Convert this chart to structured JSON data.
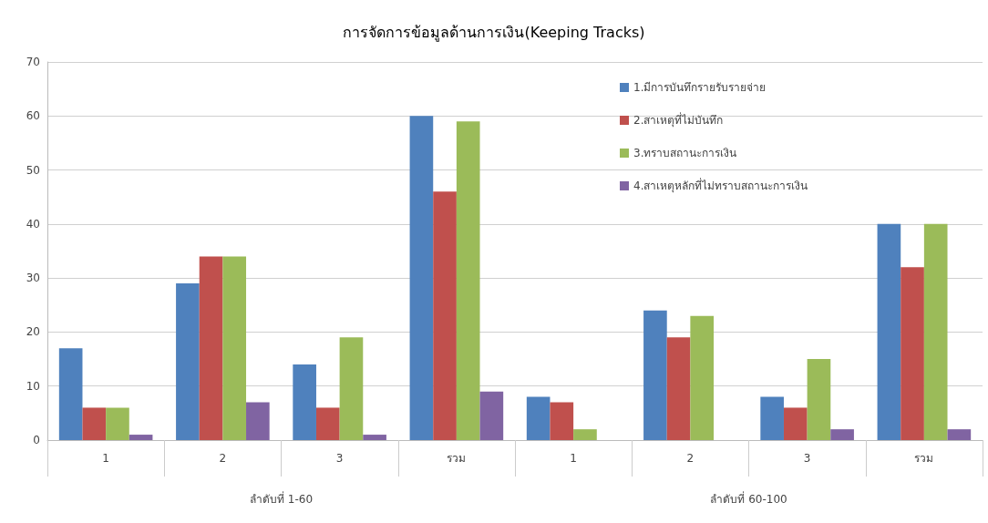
{
  "chart_data": {
    "type": "bar",
    "title": "การจัดการข้อมูลด้านการเงิน(Keeping Tracks)",
    "categories": [
      "1",
      "2",
      "3",
      "รวม",
      "1",
      "2",
      "3",
      "รวม"
    ],
    "series": [
      {
        "name": "1.มีการบันทึกรายรับรายจ่าย",
        "color": "#4f81bd",
        "values": [
          17,
          29,
          14,
          60,
          8,
          24,
          8,
          40
        ]
      },
      {
        "name": "2.สาเหตุที่ไม่บันทึก",
        "color": "#c0504d",
        "values": [
          6,
          34,
          6,
          46,
          7,
          19,
          6,
          32
        ]
      },
      {
        "name": "3.ทราบสถานะการเงิน",
        "color": "#9bbb59",
        "values": [
          6,
          34,
          19,
          59,
          2,
          23,
          15,
          40
        ]
      },
      {
        "name": "4.สาเหตุหลักที่ไม่ทราบสถานะการเงิน",
        "color": "#8064a2",
        "values": [
          1,
          7,
          1,
          9,
          null,
          null,
          2,
          2
        ]
      }
    ],
    "annotations": [
      "ลำดับที่ 1-60",
      "ลำดับที่ 60-100"
    ],
    "ylim": [
      0,
      70
    ],
    "yticks": [
      0,
      10,
      20,
      30,
      40,
      50,
      60,
      70
    ],
    "grid": "y",
    "legend": "top right"
  }
}
